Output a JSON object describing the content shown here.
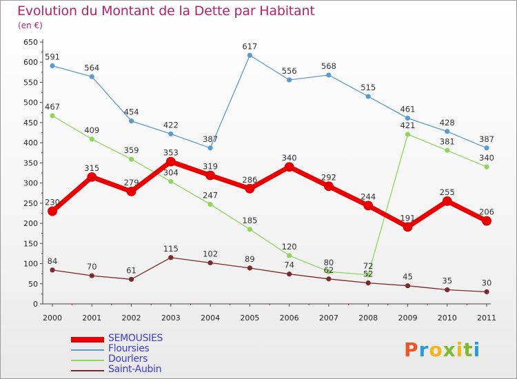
{
  "title": "Evolution du Montant de la Dette par Habitant",
  "subtitle": "(en €)",
  "brand": "Proxiti",
  "chart_data": {
    "type": "line",
    "x": [
      "2000",
      "2001",
      "2002",
      "2003",
      "2004",
      "2005",
      "2006",
      "2007",
      "2008",
      "2009",
      "2010",
      "2011"
    ],
    "ylim": [
      0,
      650
    ],
    "yticks": [
      0,
      50,
      100,
      150,
      200,
      250,
      300,
      350,
      400,
      450,
      500,
      550,
      600,
      650
    ],
    "grid": false,
    "legend_position": "bottom-left",
    "series": [
      {
        "name": "SEMOUSIES",
        "color": "#e80000",
        "values": [
          230,
          315,
          279,
          353,
          319,
          286,
          340,
          292,
          244,
          191,
          255,
          206
        ]
      },
      {
        "name": "Floursies",
        "color": "#5a9bcf",
        "values": [
          591,
          564,
          454,
          422,
          387,
          617,
          556,
          568,
          515,
          461,
          428,
          387
        ]
      },
      {
        "name": "Dourlers",
        "color": "#8ed65a",
        "values": [
          467,
          409,
          359,
          304,
          247,
          185,
          120,
          80,
          72,
          421,
          381,
          340
        ]
      },
      {
        "name": "Saint-Aubin",
        "color": "#7a2a2a",
        "values": [
          84,
          70,
          61,
          115,
          102,
          89,
          74,
          62,
          52,
          45,
          35,
          30
        ]
      }
    ]
  }
}
